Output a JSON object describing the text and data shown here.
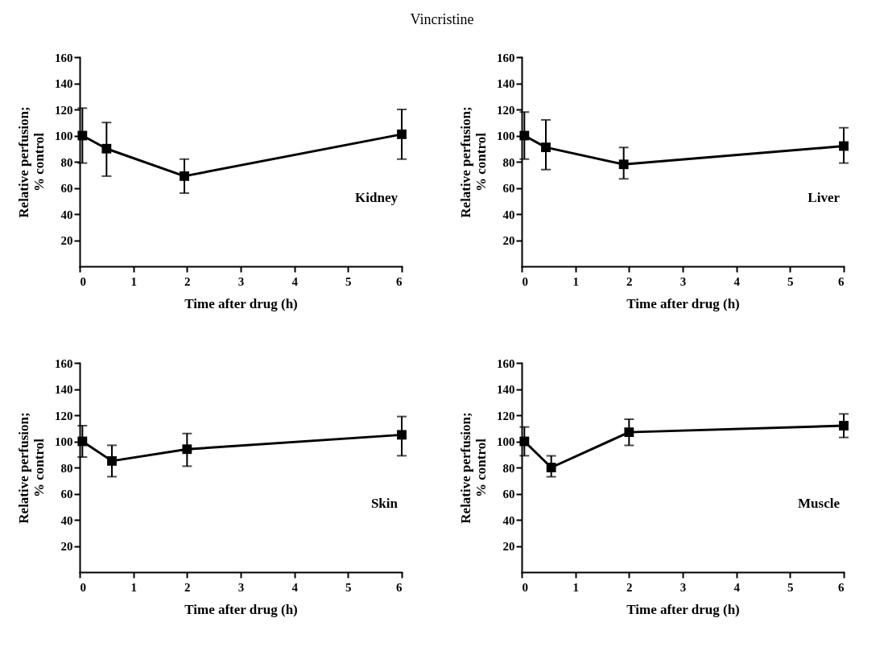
{
  "chart_data": [
    {
      "type": "other",
      "title": "Vincristine"
    },
    {
      "type": "line",
      "xlabel": "Time after drug (h)",
      "ylabel": "Relative perfusion;\n% control",
      "annotations": [
        "Kidney"
      ],
      "color": "#000000",
      "marker": "square",
      "line_style": "solid",
      "x": [
        0.05,
        0.5,
        1.95,
        6
      ],
      "values": [
        100,
        90,
        69,
        101
      ],
      "errors": [
        [
          79,
          121
        ],
        [
          69,
          110
        ],
        [
          56,
          82
        ],
        [
          82,
          120
        ]
      ],
      "xlim": [
        0,
        6
      ],
      "xticks": [
        0,
        1,
        2,
        3,
        4,
        5,
        6
      ],
      "ylim": [
        0,
        160
      ],
      "yticks": [
        20,
        40,
        60,
        80,
        100,
        120,
        140,
        160
      ]
    },
    {
      "type": "line",
      "xlabel": "Time after drug (h)",
      "ylabel": "Relative perfusion;\n% control",
      "annotations": [
        "Liver"
      ],
      "color": "#000000",
      "marker": "square",
      "line_style": "solid",
      "x": [
        0.05,
        0.45,
        1.9,
        6
      ],
      "values": [
        100,
        91,
        78,
        92
      ],
      "errors": [
        [
          82,
          118
        ],
        [
          74,
          112
        ],
        [
          67,
          91
        ],
        [
          79,
          106
        ]
      ],
      "xlim": [
        0,
        6
      ],
      "xticks": [
        0,
        1,
        2,
        3,
        4,
        5,
        6
      ],
      "ylim": [
        0,
        160
      ],
      "yticks": [
        20,
        40,
        60,
        80,
        100,
        120,
        140,
        160
      ]
    },
    {
      "type": "line",
      "xlabel": "Time after drug (h)",
      "ylabel": "Relative perfusion;\n% control",
      "annotations": [
        "Skin"
      ],
      "color": "#000000",
      "marker": "square",
      "line_style": "solid",
      "x": [
        0.05,
        0.6,
        2,
        6
      ],
      "values": [
        100,
        85,
        94,
        105
      ],
      "errors": [
        [
          88,
          112
        ],
        [
          73,
          97
        ],
        [
          81,
          106
        ],
        [
          89,
          119
        ]
      ],
      "xlim": [
        0,
        6
      ],
      "xticks": [
        0,
        1,
        2,
        3,
        4,
        5,
        6
      ],
      "ylim": [
        0,
        160
      ],
      "yticks": [
        20,
        40,
        60,
        80,
        100,
        120,
        140,
        160
      ]
    },
    {
      "type": "line",
      "xlabel": "Time after drug (h)",
      "ylabel": "Relative perfusion;\n% control",
      "annotations": [
        "Muscle"
      ],
      "color": "#000000",
      "marker": "square",
      "line_style": "solid",
      "x": [
        0.05,
        0.55,
        2,
        6
      ],
      "values": [
        100,
        80,
        107,
        112
      ],
      "errors": [
        [
          89,
          111
        ],
        [
          73,
          89
        ],
        [
          97,
          117
        ],
        [
          103,
          121
        ]
      ],
      "xlim": [
        0,
        6
      ],
      "xticks": [
        0,
        1,
        2,
        3,
        4,
        5,
        6
      ],
      "ylim": [
        0,
        160
      ],
      "yticks": [
        20,
        40,
        60,
        80,
        100,
        120,
        140,
        160
      ]
    }
  ]
}
